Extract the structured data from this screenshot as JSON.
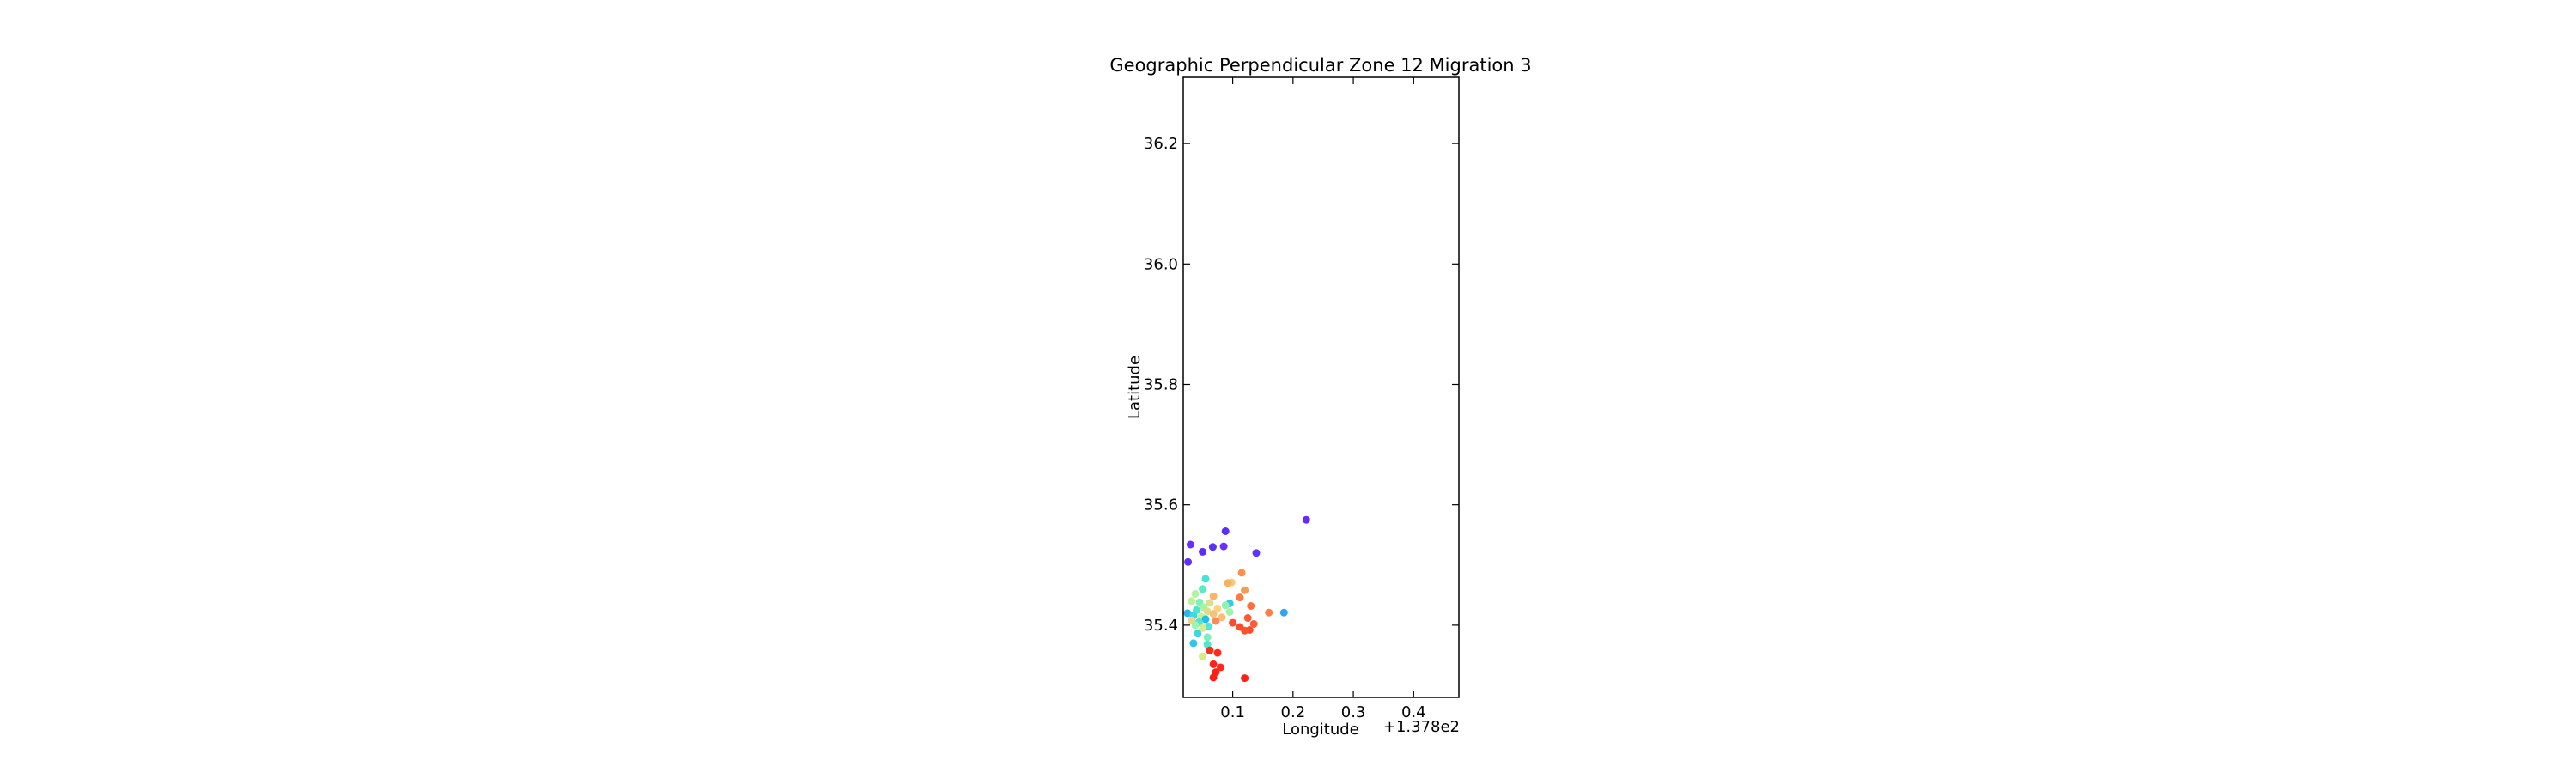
{
  "chart_data": {
    "type": "scatter",
    "title": "Geographic Perpendicular Zone 12 Migration 3",
    "xlabel": "Longitude",
    "ylabel": "Latitude",
    "x_offset_text": "+1.378e2",
    "x_offset": 137.8,
    "xlim": [
      0.018,
      0.475
    ],
    "ylim": [
      35.28,
      36.31
    ],
    "xticks": [
      0.1,
      0.2,
      0.3,
      0.4
    ],
    "xtick_labels": [
      "0.1",
      "0.2",
      "0.3",
      "0.4"
    ],
    "yticks": [
      35.4,
      35.6,
      35.8,
      36.0,
      36.2
    ],
    "ytick_labels": [
      "35.4",
      "35.6",
      "35.8",
      "36.0",
      "36.2"
    ],
    "grid": false,
    "legend": "none",
    "points": [
      {
        "x": 0.222,
        "y": 35.575,
        "color": "#6a28ff"
      },
      {
        "x": 0.088,
        "y": 35.556,
        "color": "#5b2dff"
      },
      {
        "x": 0.03,
        "y": 35.534,
        "color": "#6a2cff"
      },
      {
        "x": 0.067,
        "y": 35.53,
        "color": "#5a30ff"
      },
      {
        "x": 0.085,
        "y": 35.531,
        "color": "#6b2fff"
      },
      {
        "x": 0.05,
        "y": 35.522,
        "color": "#5b2bff"
      },
      {
        "x": 0.139,
        "y": 35.52,
        "color": "#5d35ff"
      },
      {
        "x": 0.026,
        "y": 35.505,
        "color": "#6331ff"
      },
      {
        "x": 0.115,
        "y": 35.487,
        "color": "#ff8f4b"
      },
      {
        "x": 0.055,
        "y": 35.477,
        "color": "#46e3d9"
      },
      {
        "x": 0.098,
        "y": 35.471,
        "color": "#f7c978"
      },
      {
        "x": 0.092,
        "y": 35.47,
        "color": "#f4b45b"
      },
      {
        "x": 0.05,
        "y": 35.46,
        "color": "#58ecc7"
      },
      {
        "x": 0.12,
        "y": 35.458,
        "color": "#ff9854"
      },
      {
        "x": 0.038,
        "y": 35.452,
        "color": "#b3f2a2"
      },
      {
        "x": 0.068,
        "y": 35.448,
        "color": "#ffb26a"
      },
      {
        "x": 0.112,
        "y": 35.446,
        "color": "#ff7b45"
      },
      {
        "x": 0.032,
        "y": 35.44,
        "color": "#c2ee9a"
      },
      {
        "x": 0.045,
        "y": 35.438,
        "color": "#7ff0b9"
      },
      {
        "x": 0.062,
        "y": 35.437,
        "color": "#d6e28f"
      },
      {
        "x": 0.095,
        "y": 35.436,
        "color": "#34c9e8"
      },
      {
        "x": 0.088,
        "y": 35.433,
        "color": "#8bf2b0"
      },
      {
        "x": 0.13,
        "y": 35.432,
        "color": "#ff6f3d"
      },
      {
        "x": 0.052,
        "y": 35.43,
        "color": "#a3f5a6"
      },
      {
        "x": 0.075,
        "y": 35.428,
        "color": "#ffd27e"
      },
      {
        "x": 0.04,
        "y": 35.425,
        "color": "#4fe4d2"
      },
      {
        "x": 0.058,
        "y": 35.423,
        "color": "#e2dc88"
      },
      {
        "x": 0.095,
        "y": 35.422,
        "color": "#9ff3a8"
      },
      {
        "x": 0.16,
        "y": 35.421,
        "color": "#ff7f48"
      },
      {
        "x": 0.185,
        "y": 35.421,
        "color": "#2ea6f2"
      },
      {
        "x": 0.025,
        "y": 35.42,
        "color": "#2fb2ee"
      },
      {
        "x": 0.068,
        "y": 35.419,
        "color": "#f0c47c"
      },
      {
        "x": 0.035,
        "y": 35.416,
        "color": "#3fd8de"
      },
      {
        "x": 0.048,
        "y": 35.414,
        "color": "#c9ee95"
      },
      {
        "x": 0.082,
        "y": 35.413,
        "color": "#ffbd70"
      },
      {
        "x": 0.125,
        "y": 35.412,
        "color": "#ff5a36"
      },
      {
        "x": 0.055,
        "y": 35.41,
        "color": "#1ec0ea"
      },
      {
        "x": 0.032,
        "y": 35.408,
        "color": "#e8d68a"
      },
      {
        "x": 0.072,
        "y": 35.407,
        "color": "#ff8a4e"
      },
      {
        "x": 0.044,
        "y": 35.405,
        "color": "#51e6cf"
      },
      {
        "x": 0.1,
        "y": 35.404,
        "color": "#ff4b2f"
      },
      {
        "x": 0.135,
        "y": 35.402,
        "color": "#ff5c35"
      },
      {
        "x": 0.038,
        "y": 35.4,
        "color": "#9ff4ad"
      },
      {
        "x": 0.06,
        "y": 35.398,
        "color": "#4fe8d4"
      },
      {
        "x": 0.112,
        "y": 35.397,
        "color": "#ff4a2c"
      },
      {
        "x": 0.05,
        "y": 35.395,
        "color": "#d8ea8c"
      },
      {
        "x": 0.128,
        "y": 35.392,
        "color": "#ff4d2e"
      },
      {
        "x": 0.12,
        "y": 35.391,
        "color": "#ff512f"
      },
      {
        "x": 0.042,
        "y": 35.386,
        "color": "#3ed6e2"
      },
      {
        "x": 0.058,
        "y": 35.38,
        "color": "#7cefbf"
      },
      {
        "x": 0.035,
        "y": 35.37,
        "color": "#32c4ea"
      },
      {
        "x": 0.058,
        "y": 35.368,
        "color": "#50e7cf"
      },
      {
        "x": 0.062,
        "y": 35.358,
        "color": "#ff2d1d"
      },
      {
        "x": 0.075,
        "y": 35.354,
        "color": "#ff2a1a"
      },
      {
        "x": 0.05,
        "y": 35.348,
        "color": "#e0e585"
      },
      {
        "x": 0.068,
        "y": 35.335,
        "color": "#ff2419"
      },
      {
        "x": 0.08,
        "y": 35.33,
        "color": "#ff2a1c"
      },
      {
        "x": 0.072,
        "y": 35.322,
        "color": "#ff2116"
      },
      {
        "x": 0.068,
        "y": 35.313,
        "color": "#ff1d14"
      },
      {
        "x": 0.12,
        "y": 35.312,
        "color": "#ff2216"
      }
    ]
  }
}
